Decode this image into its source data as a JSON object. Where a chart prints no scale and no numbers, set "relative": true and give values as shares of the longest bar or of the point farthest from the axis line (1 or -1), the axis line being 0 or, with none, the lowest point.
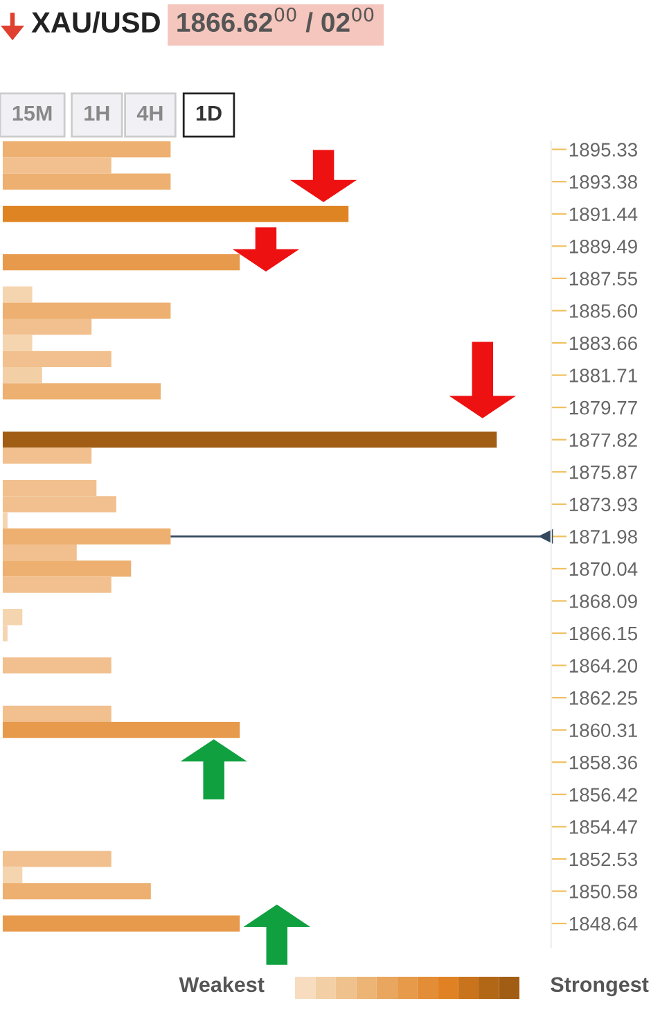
{
  "chart_data": {
    "type": "bar",
    "orientation": "horizontal",
    "relative": true,
    "title": "XAU/USD",
    "subtitle": "1866.62$^{00}$ / 02$^{00}$",
    "annotations": [
      "15M",
      "1H",
      "4H",
      "1D",
      "Weakest",
      "Strongest"
    ],
    "categories": [
      "1895.33",
      null,
      "1893.38",
      null,
      "1891.44",
      null,
      "1889.49",
      null,
      "1887.55",
      null,
      "1885.60",
      null,
      "1883.66",
      null,
      "1881.71",
      null,
      "1879.77",
      null,
      "1877.82",
      null,
      "1875.87",
      null,
      "1873.93",
      null,
      "1871.98",
      null,
      "1870.04",
      null,
      "1868.09",
      null,
      "1866.15",
      null,
      "1864.20",
      null,
      "1862.25",
      null,
      "1860.31",
      null,
      "1858.36",
      null,
      "1856.42",
      null,
      "1854.47",
      null,
      "1852.53",
      null,
      "1850.58",
      null,
      "1848.64",
      null
    ],
    "values": [
      0.34,
      0.22,
      0.34,
      0,
      0.7,
      0,
      0,
      0.48,
      0,
      0.06,
      0.34,
      0.18,
      0.06,
      0.22,
      0.08,
      0.32,
      0,
      0,
      1,
      0.18,
      0,
      0.19,
      0.23,
      0.01,
      0.34,
      0.15,
      0.26,
      0.22,
      0,
      0.04,
      0.01,
      0,
      0.22,
      0,
      0,
      0.22,
      0.48,
      0,
      0,
      0,
      0,
      0,
      0,
      0,
      0.22,
      0.04,
      0.3,
      0,
      0.48,
      0
    ],
    "colors": [
      "#edb070",
      "#f1c08e",
      "#edb070",
      "#f5d5b0",
      "#df8423",
      "#f5d5b0",
      "#f5d5b0",
      "#e79a4c",
      "#f5d5b0",
      "#f5d5b0",
      "#edb070",
      "#f1c08e",
      "#f5d5b0",
      "#f1c08e",
      "#f3cfa6",
      "#edb070",
      "#f5d5b0",
      "#f5d5b0",
      "#a15d14",
      "#f1c08e",
      "#f5d5b0",
      "#f1c08e",
      "#f1c08e",
      "#f5d5b0",
      "#edb070",
      "#f1c08e",
      "#edb070",
      "#f1c08e",
      "#f5d5b0",
      "#f5d5b0",
      "#f5d5b0",
      "#f5d5b0",
      "#f1c08e",
      "#f5d5b0",
      "#f5d5b0",
      "#f1c08e",
      "#e79a4c",
      "#f5d5b0",
      "#f5d5b0",
      "#f5d5b0",
      "#f5d5b0",
      "#f5d5b0",
      "#f5d5b0",
      "#f5d5b0",
      "#f1c08e",
      "#f5d5b0",
      "#edb070",
      "#f5d5b0",
      "#e79a4c",
      "#f5d5b0"
    ],
    "ref_lines": [
      {
        "axis": "y",
        "value": "1871.98",
        "color": "#34495e"
      }
    ]
  }
}
